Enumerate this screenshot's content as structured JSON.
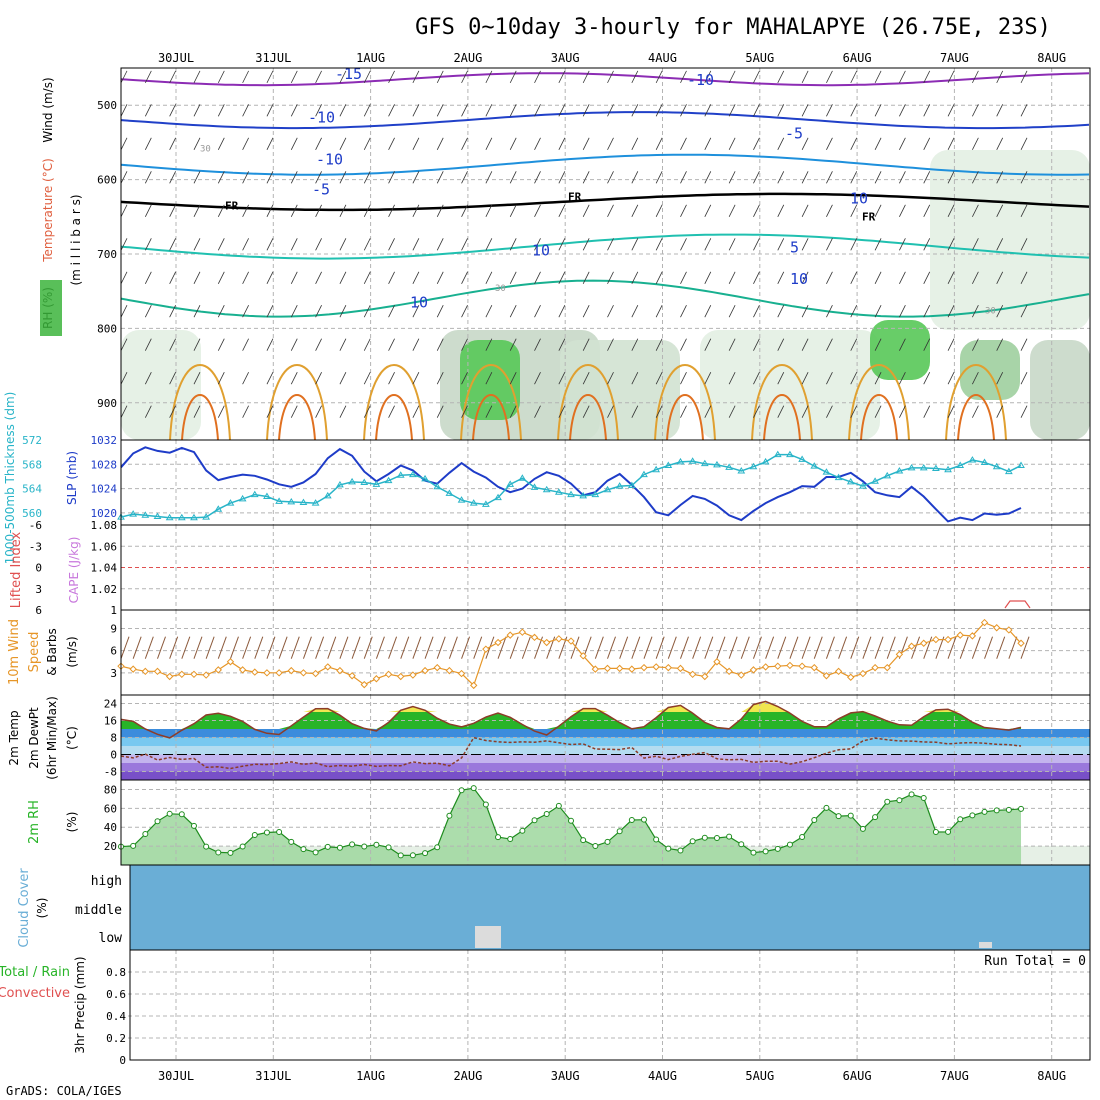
{
  "title": "GFS 0~10day 3-hourly for MAHALAPYE (26.75E, 23S)",
  "footer": "GrADS: COLA/IGES",
  "date_labels": [
    "30JUL",
    "31JUL",
    "1AUG",
    "2AUG",
    "3AUG",
    "4AUG",
    "5AUG",
    "6AUG",
    "7AUG",
    "8AUG"
  ],
  "colors": {
    "grid": "#b4b4b4",
    "slp": "#1e3cc8",
    "thickness": "#28b4c8",
    "wind": "#e69628",
    "barb": "#8c5a3c",
    "rh_fill": "#50c850",
    "rh_line": "#1e8c1e",
    "cloud": "#6aaed6",
    "lifted": "#e05050"
  },
  "chart_data": [
    {
      "type": "heatmap",
      "panel": "upper-air",
      "ylabel_parts": [
        "RH (%)",
        "Temperature (°C)",
        "Wind (m/s)",
        "(m i l l i b a r s)"
      ],
      "y_ticks": [
        "500",
        "600",
        "700",
        "800",
        "900"
      ],
      "contour_labels": [
        "-15",
        "-10",
        "-10",
        "-10",
        "-5",
        "-5",
        "5",
        "10",
        "10",
        "FR",
        "FR",
        "FR",
        "10",
        "30",
        "30",
        "10",
        "30"
      ],
      "ylim": [
        450,
        950
      ]
    },
    {
      "type": "line",
      "panel": "slp-thickness",
      "ylabel_left": "1000-500mb Thickness (dm)",
      "ylabel_right": "SLP (mb)",
      "y_ticks_left": [
        "560",
        "564",
        "568",
        "572"
      ],
      "y_ticks_right": [
        "1020",
        "1024",
        "1028",
        "1032"
      ],
      "series": [
        {
          "name": "SLP (mb)",
          "values": [
            1027.5,
            1029.8,
            1030.8,
            1030.2,
            1029.9,
            1030.7,
            1030.0,
            1027.0,
            1025.4,
            1025.9,
            1026.3,
            1026.1,
            1025.5,
            1024.7,
            1024.3,
            1025.0,
            1026.4,
            1029.0,
            1030.5,
            1029.4,
            1026.8,
            1025.2,
            1026.4,
            1027.8,
            1027.0,
            1025.3,
            1024.8,
            1026.6,
            1028.2,
            1026.8,
            1025.8,
            1024.3,
            1023.4,
            1024.0,
            1025.6,
            1026.7,
            1026.1,
            1024.8,
            1022.9,
            1023.4,
            1025.3,
            1026.4,
            1024.6,
            1022.6,
            1020.1,
            1019.6,
            1021.3,
            1022.8,
            1022.3,
            1021.2,
            1019.6,
            1018.8,
            1020.3,
            1021.6,
            1022.6,
            1023.4,
            1024.4,
            1024.3,
            1025.9,
            1025.9,
            1026.6,
            1025.2,
            1023.4,
            1022.9,
            1022.6,
            1024.3,
            1022.7,
            1020.6,
            1018.6,
            1019.2,
            1018.8,
            1019.9,
            1019.7,
            1019.9,
            1020.8
          ]
        },
        {
          "name": "1000-500mb Thickness (dm)",
          "values": [
            559.3,
            559.8,
            559.6,
            559.4,
            559.2,
            559.2,
            559.2,
            559.3,
            560.6,
            561.6,
            562.3,
            563.0,
            562.7,
            561.9,
            561.8,
            561.7,
            561.6,
            562.8,
            564.6,
            565.1,
            565.0,
            564.7,
            565.3,
            566.2,
            566.3,
            565.6,
            564.3,
            563.2,
            562.1,
            561.6,
            561.4,
            562.5,
            564.7,
            565.7,
            564.2,
            563.8,
            563.4,
            563.0,
            562.8,
            563.0,
            563.8,
            564.4,
            564.5,
            566.3,
            567.1,
            567.8,
            568.4,
            568.5,
            568.1,
            567.9,
            567.5,
            566.9,
            567.6,
            568.4,
            569.6,
            569.6,
            568.8,
            567.7,
            566.7,
            565.8,
            565.1,
            564.4,
            565.2,
            566.1,
            566.9,
            567.4,
            567.4,
            567.3,
            567.1,
            567.8,
            568.7,
            568.3,
            567.6,
            566.8,
            567.8
          ]
        }
      ]
    },
    {
      "type": "line",
      "panel": "lifted-cape",
      "ylabel_left": "Lifted Index",
      "ylabel_right": "CAPE (J/kg)",
      "y_ticks_left": [
        "-6",
        "-3",
        "0",
        "3",
        "6"
      ],
      "y_ticks_right": [
        "1",
        "1.02",
        "1.04",
        "1.06",
        "1.08"
      ],
      "series": [
        {
          "name": "CAPE (J/kg)",
          "values": [
            1,
            1,
            1,
            1,
            1,
            1,
            1,
            1,
            1,
            1,
            1,
            1,
            1,
            1,
            1,
            1,
            1,
            1,
            1,
            1,
            1,
            1,
            1,
            1,
            1,
            1,
            1,
            1,
            1,
            1,
            1,
            1,
            1,
            1,
            1,
            1,
            1,
            1,
            1,
            1,
            1,
            1,
            1,
            1,
            1,
            1,
            1,
            1,
            1,
            1,
            1,
            1,
            1,
            1,
            1,
            1,
            1,
            1,
            1,
            1,
            1,
            1,
            1,
            1,
            1,
            1,
            1,
            1,
            1,
            1,
            1,
            1,
            1,
            1,
            1
          ]
        }
      ]
    },
    {
      "type": "line",
      "panel": "10m-wind",
      "ylabel": "10m Wind Speed & Barbs (m/s)",
      "y_ticks": [
        "3",
        "6",
        "9"
      ],
      "ylim": [
        0,
        11.5
      ],
      "series": [
        {
          "name": "10m Wind Speed",
          "values": [
            3.9,
            3.5,
            3.2,
            3.2,
            2.5,
            2.8,
            2.8,
            2.7,
            3.4,
            4.5,
            3.4,
            3.1,
            3.0,
            3.0,
            3.3,
            3.0,
            2.9,
            3.8,
            3.3,
            2.6,
            1.4,
            2.2,
            2.8,
            2.5,
            2.7,
            3.3,
            3.7,
            3.3,
            2.9,
            1.3,
            6.2,
            7.1,
            8.1,
            8.5,
            7.8,
            7.1,
            7.6,
            7.3,
            5.3,
            3.5,
            3.6,
            3.6,
            3.5,
            3.7,
            3.8,
            3.7,
            3.6,
            2.8,
            2.5,
            4.5,
            3.2,
            2.7,
            3.4,
            3.8,
            3.9,
            4.0,
            3.9,
            3.7,
            2.6,
            3.2,
            2.4,
            2.9,
            3.7,
            3.7,
            5.5,
            6.6,
            7.0,
            7.5,
            7.5,
            8.1,
            8.0,
            9.8,
            9.1,
            8.8,
            7.0
          ]
        }
      ]
    },
    {
      "type": "area",
      "panel": "2m-temp",
      "ylabel": "2m Temp 2m DewPt (6hr Min/Max) (°C)",
      "y_ticks": [
        "-8",
        "0",
        "8",
        "16",
        "24"
      ],
      "ylim": [
        -12,
        28
      ],
      "series": [
        {
          "name": "2m Temp",
          "values": [
            16.5,
            15.6,
            12.0,
            9.5,
            7.8,
            11.4,
            14.5,
            18.6,
            19.4,
            18.0,
            15.6,
            11.8,
            10.0,
            9.4,
            13.5,
            17.6,
            21.5,
            21.6,
            18.5,
            14.5,
            12.3,
            11.1,
            15.1,
            20.8,
            22.6,
            20.8,
            17.1,
            14.3,
            13.0,
            14.7,
            17.6,
            19.5,
            17.5,
            14.1,
            11.0,
            9.2,
            13.3,
            17.8,
            21.6,
            21.6,
            18.5,
            15.0,
            12.1,
            13.1,
            17.3,
            22.1,
            23.1,
            19.5,
            15.1,
            12.7,
            12.1,
            16.7,
            23.5,
            25.0,
            22.6,
            19.5,
            15.6,
            13.1,
            13.1,
            16.8,
            19.6,
            20.2,
            18.1,
            15.7,
            14.0,
            13.8,
            17.8,
            21.0,
            21.3,
            18.8,
            15.2,
            12.7,
            12.1,
            11.5,
            12.8
          ]
        },
        {
          "name": "2m DewPt",
          "values": [
            -0.7,
            -1.6,
            0.2,
            -2.6,
            -1.4,
            -2.3,
            -1.9,
            -6.0,
            -5.8,
            -6.6,
            -5.5,
            -4.6,
            -4.7,
            -4.3,
            -3.5,
            -4.6,
            -4.0,
            -5.7,
            -5.2,
            -5.5,
            -4.7,
            -5.6,
            -5.2,
            -5.3,
            -3.5,
            -4.3,
            -4.1,
            -5.3,
            -1.6,
            7.9,
            6.6,
            6.0,
            5.7,
            6.0,
            5.8,
            6.4,
            5.5,
            4.7,
            5.0,
            2.6,
            2.5,
            2.3,
            3.3,
            -1.7,
            -0.8,
            -2.4,
            -0.9,
            0.1,
            0.9,
            -2.0,
            -2.5,
            -2.3,
            -3.7,
            -3.2,
            -3.2,
            -4.5,
            -3.4,
            -1.5,
            0.6,
            2.2,
            2.7,
            6.4,
            7.7,
            6.9,
            6.4,
            6.3,
            5.9,
            5.8,
            5.0,
            5.4,
            5.6,
            5.3,
            4.8,
            4.6,
            4.0
          ]
        }
      ]
    },
    {
      "type": "area",
      "panel": "2m-rh",
      "ylabel": "2m RH (%)",
      "y_ticks": [
        "20",
        "40",
        "60",
        "80"
      ],
      "ylim": [
        0,
        90
      ],
      "series": [
        {
          "name": "2m RH",
          "values": [
            19.5,
            20.2,
            32.8,
            46.3,
            54.2,
            53.7,
            41.4,
            19.4,
            13.3,
            12.9,
            19.6,
            31.8,
            34.4,
            35.0,
            24.5,
            16.8,
            13.4,
            19.2,
            18.3,
            21.8,
            19.6,
            21.4,
            18.7,
            10.2,
            10.3,
            12.6,
            18.8,
            52.1,
            79.2,
            81.4,
            64.1,
            29.5,
            27.5,
            36.2,
            47.4,
            54.0,
            62.6,
            46.8,
            26.3,
            20.1,
            24.5,
            35.7,
            47.7,
            48.0,
            27.0,
            17.4,
            15.4,
            25.1,
            28.8,
            28.6,
            30.0,
            22.0,
            13.1,
            14.4,
            17.1,
            21.6,
            29.6,
            47.7,
            60.5,
            51.8,
            52.3,
            38.2,
            50.7,
            67.0,
            68.6,
            74.8,
            71.0,
            34.9,
            35.1,
            48.4,
            52.5,
            56.2,
            57.9,
            58.4,
            59.4
          ]
        }
      ]
    },
    {
      "type": "bar",
      "panel": "cloud-cover",
      "ylabel": "Cloud Cover (%)",
      "y_ticks": [
        "high",
        "middle",
        "low"
      ]
    },
    {
      "type": "bar",
      "panel": "precip",
      "ylabel_parts": [
        "Total / Rain",
        "Convective",
        "3hr Precip (mm)"
      ],
      "y_ticks": [
        "0",
        "0.2",
        "0.4",
        "0.6",
        "0.8"
      ],
      "ylim": [
        0,
        1
      ],
      "annotation": "Run Total = 0",
      "values": []
    }
  ]
}
